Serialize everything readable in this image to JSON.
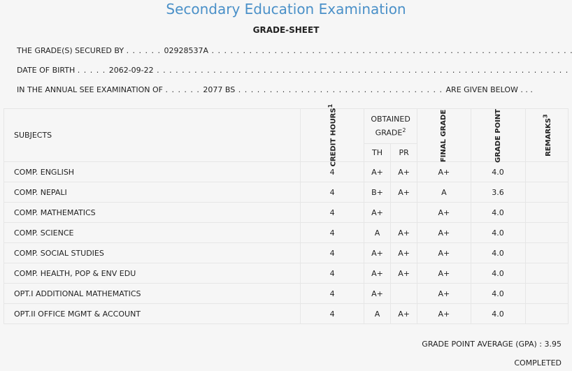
{
  "header": {
    "title": "Secondary Education Examination",
    "subtitle": "GRADE-SHEET"
  },
  "info": {
    "secured_by_label": "THE GRADE(S) SECURED BY",
    "secured_by_value": "02928537A",
    "dob_label": "DATE OF BIRTH",
    "dob_value": "2062-09-22",
    "exam_label": "IN THE ANNUAL SEE EXAMINATION OF",
    "exam_value": "2077 BS",
    "exam_suffix": "ARE GIVEN BELOW . . ."
  },
  "table": {
    "headers": {
      "subjects": "SUBJECTS",
      "credit_hours": "CREDIT HOURS",
      "credit_sup": "1",
      "obtained_grade": "OBTAINED GRADE",
      "obtained_sup": "2",
      "th": "TH",
      "pr": "PR",
      "final_grade": "FINAL GRADE",
      "grade_point": "GRADE POINT",
      "remarks": "REMARKS",
      "remarks_sup": "3"
    },
    "rows": [
      {
        "subject": "COMP. ENGLISH",
        "credit": "4",
        "th": "A+",
        "pr": "A+",
        "final": "A+",
        "gp": "4.0"
      },
      {
        "subject": "COMP. NEPALI",
        "credit": "4",
        "th": "B+",
        "pr": "A+",
        "final": "A",
        "gp": "3.6"
      },
      {
        "subject": "COMP. MATHEMATICS",
        "credit": "4",
        "th": "A+",
        "pr": "",
        "final": "A+",
        "gp": "4.0"
      },
      {
        "subject": "COMP. SCIENCE",
        "credit": "4",
        "th": "A",
        "pr": "A+",
        "final": "A+",
        "gp": "4.0"
      },
      {
        "subject": "COMP. SOCIAL STUDIES",
        "credit": "4",
        "th": "A+",
        "pr": "A+",
        "final": "A+",
        "gp": "4.0"
      },
      {
        "subject": "COMP. HEALTH, POP & ENV EDU",
        "credit": "4",
        "th": "A+",
        "pr": "A+",
        "final": "A+",
        "gp": "4.0"
      },
      {
        "subject": "OPT.I ADDITIONAL MATHEMATICS",
        "credit": "4",
        "th": "A+",
        "pr": "",
        "final": "A+",
        "gp": "4.0"
      },
      {
        "subject": "OPT.II OFFICE MGMT & ACCOUNT",
        "credit": "4",
        "th": "A",
        "pr": "A+",
        "final": "A+",
        "gp": "4.0"
      }
    ]
  },
  "summary": {
    "gpa_label": "GRADE POINT AVERAGE (GPA) :",
    "gpa_value": "3.95",
    "status": "COMPLETED"
  }
}
